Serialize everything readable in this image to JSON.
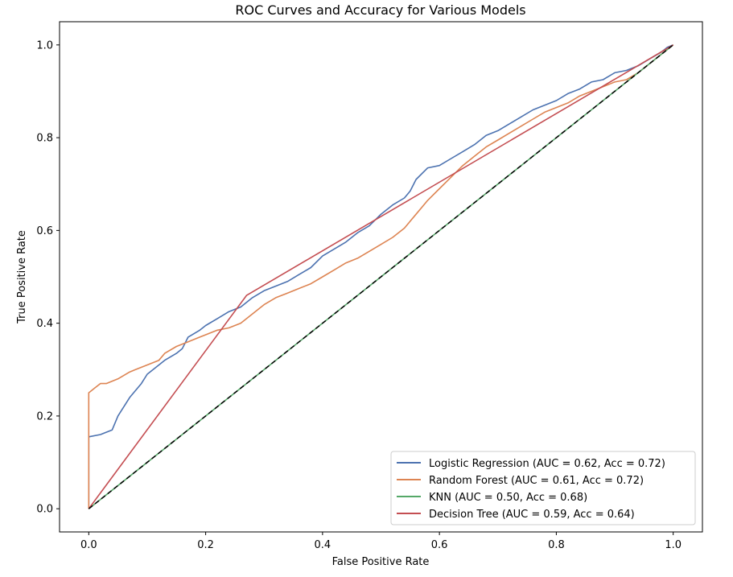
{
  "chart_data": {
    "type": "line",
    "title": "ROC Curves and Accuracy for Various Models",
    "xlabel": "False Positive Rate",
    "ylabel": "True Positive Rate",
    "xlim": [
      -0.05,
      1.05
    ],
    "ylim": [
      -0.05,
      1.05
    ],
    "xticks": [
      {
        "v": 0.0,
        "label": "0.0"
      },
      {
        "v": 0.2,
        "label": "0.2"
      },
      {
        "v": 0.4,
        "label": "0.4"
      },
      {
        "v": 0.6,
        "label": "0.6"
      },
      {
        "v": 0.8,
        "label": "0.8"
      },
      {
        "v": 1.0,
        "label": "1.0"
      }
    ],
    "yticks": [
      {
        "v": 0.0,
        "label": "0.0"
      },
      {
        "v": 0.2,
        "label": "0.2"
      },
      {
        "v": 0.4,
        "label": "0.4"
      },
      {
        "v": 0.6,
        "label": "0.6"
      },
      {
        "v": 0.8,
        "label": "0.8"
      },
      {
        "v": 1.0,
        "label": "1.0"
      }
    ],
    "grid": false,
    "legend_position": "lower-right",
    "reference_line": {
      "name": "chance",
      "color": "#000000",
      "style": "dashed",
      "x": [
        0,
        1
      ],
      "y": [
        0,
        1
      ]
    },
    "series": [
      {
        "name": "Logistic Regression",
        "legend": "Logistic Regression (AUC = 0.62, Acc = 0.72)",
        "auc": 0.62,
        "acc": 0.72,
        "color": "#4c72b0",
        "x": [
          0,
          0,
          0.02,
          0.04,
          0.05,
          0.06,
          0.07,
          0.09,
          0.1,
          0.12,
          0.13,
          0.15,
          0.16,
          0.17,
          0.19,
          0.2,
          0.22,
          0.24,
          0.26,
          0.28,
          0.3,
          0.32,
          0.34,
          0.36,
          0.38,
          0.4,
          0.42,
          0.44,
          0.46,
          0.48,
          0.5,
          0.52,
          0.54,
          0.55,
          0.56,
          0.58,
          0.6,
          0.62,
          0.64,
          0.66,
          0.68,
          0.7,
          0.72,
          0.74,
          0.76,
          0.78,
          0.8,
          0.82,
          0.84,
          0.86,
          0.88,
          0.9,
          0.92,
          0.94,
          0.96,
          0.98,
          0.99,
          1.0
        ],
        "y": [
          0,
          0.155,
          0.16,
          0.17,
          0.2,
          0.22,
          0.24,
          0.27,
          0.29,
          0.31,
          0.32,
          0.335,
          0.345,
          0.37,
          0.385,
          0.395,
          0.41,
          0.425,
          0.435,
          0.455,
          0.47,
          0.48,
          0.49,
          0.505,
          0.52,
          0.545,
          0.56,
          0.575,
          0.595,
          0.61,
          0.635,
          0.655,
          0.67,
          0.685,
          0.71,
          0.735,
          0.74,
          0.755,
          0.77,
          0.785,
          0.805,
          0.815,
          0.83,
          0.845,
          0.86,
          0.87,
          0.88,
          0.895,
          0.905,
          0.92,
          0.925,
          0.94,
          0.945,
          0.955,
          0.97,
          0.985,
          0.995,
          1.0
        ]
      },
      {
        "name": "Random Forest",
        "legend": "Random Forest (AUC = 0.61, Acc = 0.72)",
        "auc": 0.61,
        "acc": 0.72,
        "color": "#dd8452",
        "x": [
          0,
          0,
          0.01,
          0.02,
          0.03,
          0.05,
          0.07,
          0.08,
          0.1,
          0.12,
          0.13,
          0.15,
          0.17,
          0.19,
          0.2,
          0.22,
          0.24,
          0.26,
          0.28,
          0.3,
          0.32,
          0.34,
          0.36,
          0.38,
          0.4,
          0.42,
          0.44,
          0.46,
          0.48,
          0.5,
          0.52,
          0.54,
          0.56,
          0.58,
          0.6,
          0.62,
          0.64,
          0.66,
          0.68,
          0.7,
          0.72,
          0.74,
          0.76,
          0.78,
          0.8,
          0.82,
          0.84,
          0.86,
          0.88,
          0.9,
          0.92,
          0.94,
          0.96,
          0.98,
          1.0
        ],
        "y": [
          0,
          0.25,
          0.26,
          0.27,
          0.27,
          0.28,
          0.295,
          0.3,
          0.31,
          0.32,
          0.335,
          0.35,
          0.36,
          0.37,
          0.375,
          0.385,
          0.39,
          0.4,
          0.42,
          0.44,
          0.455,
          0.465,
          0.475,
          0.485,
          0.5,
          0.515,
          0.53,
          0.54,
          0.555,
          0.57,
          0.585,
          0.605,
          0.635,
          0.665,
          0.69,
          0.715,
          0.74,
          0.76,
          0.78,
          0.795,
          0.81,
          0.825,
          0.84,
          0.855,
          0.865,
          0.875,
          0.89,
          0.9,
          0.91,
          0.92,
          0.925,
          0.94,
          0.96,
          0.98,
          1.0
        ]
      },
      {
        "name": "KNN",
        "legend": "KNN (AUC = 0.50, Acc = 0.68)",
        "auc": 0.5,
        "acc": 0.68,
        "color": "#55a868",
        "x": [
          0,
          1
        ],
        "y": [
          0,
          1
        ]
      },
      {
        "name": "Decision Tree",
        "legend": "Decision Tree (AUC = 0.59, Acc = 0.64)",
        "auc": 0.59,
        "acc": 0.64,
        "color": "#c44e52",
        "x": [
          0,
          0.27,
          1
        ],
        "y": [
          0,
          0.46,
          1
        ]
      }
    ]
  }
}
